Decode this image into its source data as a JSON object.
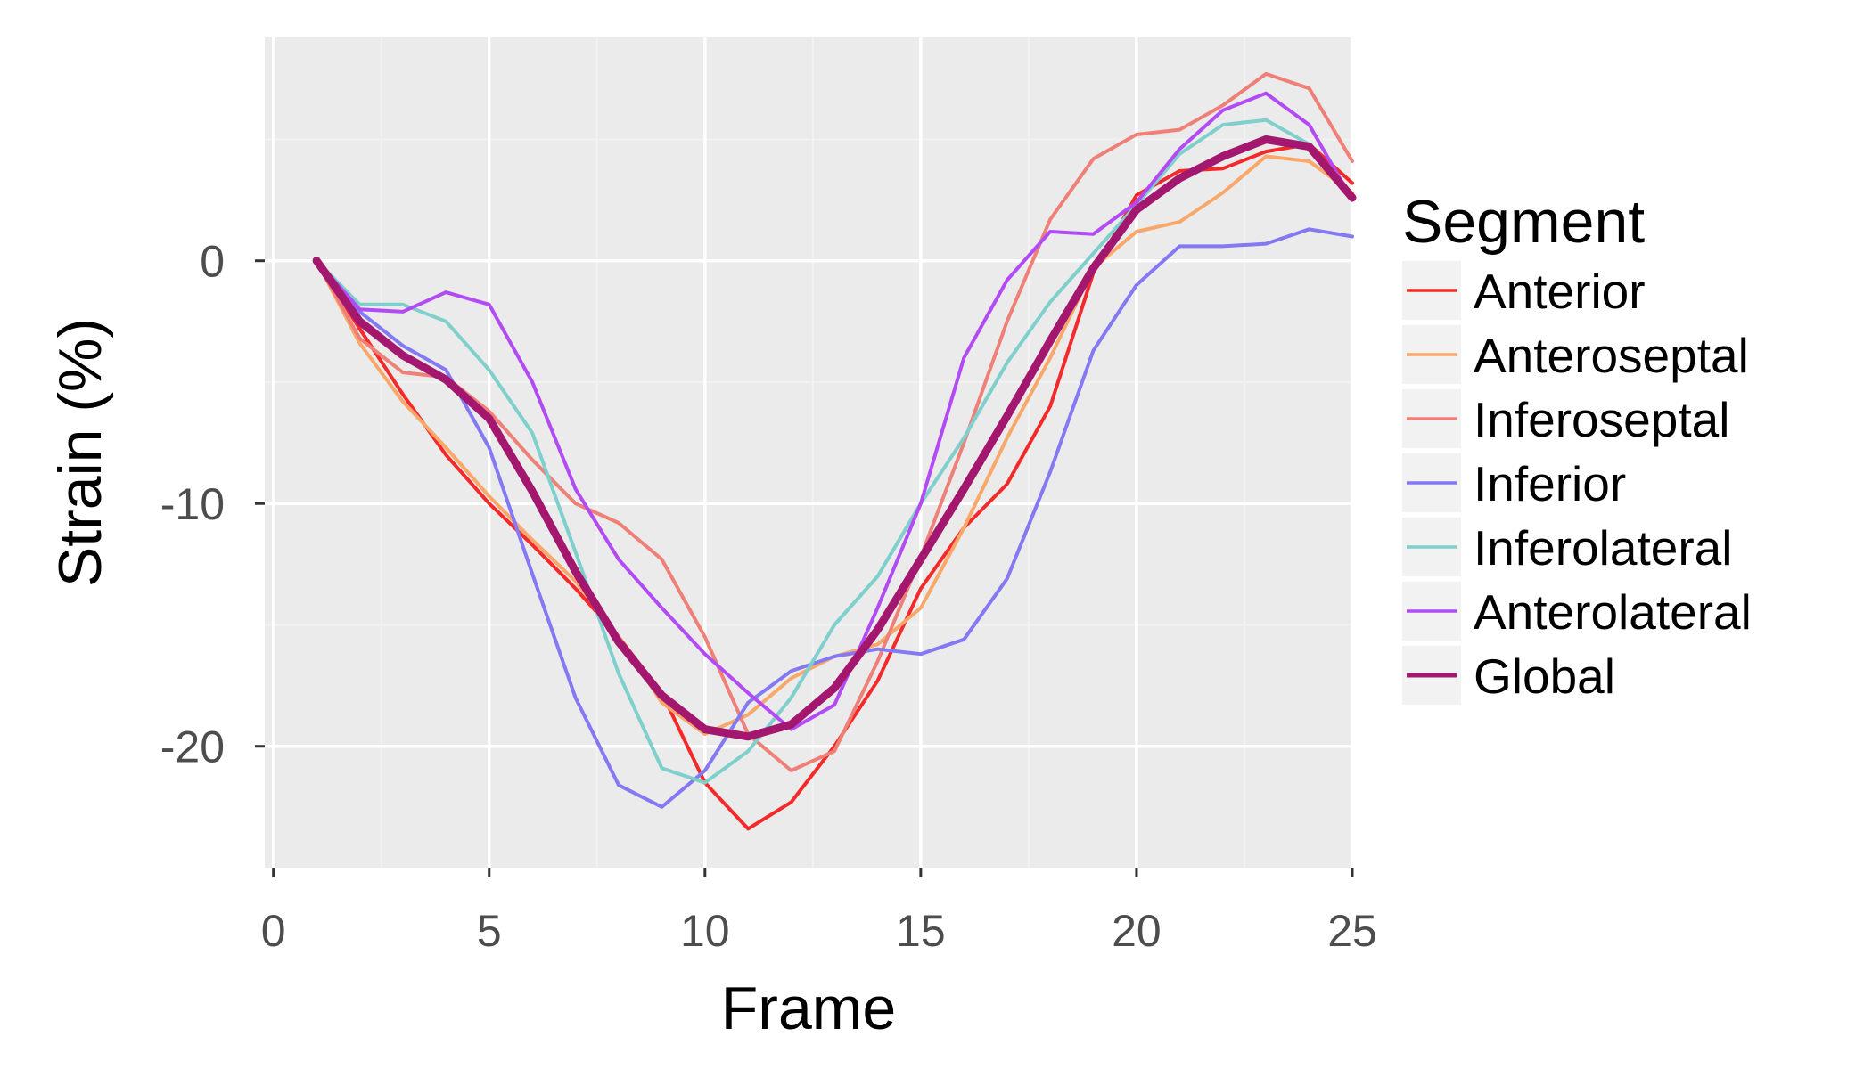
{
  "chart_data": {
    "type": "line",
    "xlabel": "Frame",
    "ylabel": "Strain (%)",
    "xlim": [
      -0.2,
      25.0
    ],
    "ylim": [
      -25.0,
      9.2
    ],
    "x_ticks": [
      0,
      5,
      10,
      15,
      20,
      25
    ],
    "x_tick_labels": [
      "0",
      "5",
      "10",
      "15",
      "20",
      "25"
    ],
    "y_ticks": [
      0,
      -10,
      -20
    ],
    "y_tick_labels": [
      "0",
      "-10",
      "-20"
    ],
    "grid": true,
    "legend_position": "right",
    "legend_title": "Segment",
    "x": [
      1,
      2,
      3,
      4,
      5,
      6,
      7,
      8,
      9,
      10,
      11,
      12,
      13,
      14,
      15,
      16,
      17,
      18,
      19,
      20,
      21,
      22,
      23,
      24,
      25
    ],
    "series": [
      {
        "name": "Anterior",
        "color": "#f42a2a",
        "width": 4,
        "values": [
          0,
          -2.8,
          -5.5,
          -8.0,
          -10.0,
          -11.7,
          -13.5,
          -15.5,
          -17.8,
          -21.5,
          -23.4,
          -22.3,
          -20.0,
          -17.3,
          -13.5,
          -11.0,
          -9.2,
          -6.0,
          -0.5,
          2.7,
          3.7,
          3.8,
          4.5,
          4.8,
          3.2
        ]
      },
      {
        "name": "Anteroseptal",
        "color": "#f9a86a",
        "width": 4,
        "values": [
          0,
          -3.4,
          -5.8,
          -7.7,
          -9.7,
          -11.5,
          -13.2,
          -15.5,
          -18.2,
          -19.5,
          -18.7,
          -17.2,
          -16.3,
          -15.8,
          -14.3,
          -11.0,
          -7.3,
          -4.0,
          -0.3,
          1.2,
          1.6,
          2.8,
          4.3,
          4.1,
          2.8
        ]
      },
      {
        "name": "Inferoseptal",
        "color": "#ef8078",
        "width": 4,
        "values": [
          0,
          -3.2,
          -4.6,
          -4.8,
          -6.2,
          -8.2,
          -10.0,
          -10.8,
          -12.3,
          -15.5,
          -19.5,
          -21.0,
          -20.2,
          -16.5,
          -12.2,
          -7.5,
          -2.5,
          1.7,
          4.2,
          5.2,
          5.4,
          6.4,
          7.7,
          7.1,
          4.1
        ]
      },
      {
        "name": "Inferior",
        "color": "#8479f3",
        "width": 4,
        "values": [
          0,
          -2.1,
          -3.5,
          -4.5,
          -7.7,
          -12.9,
          -18.0,
          -21.6,
          -22.5,
          -21.0,
          -18.2,
          -16.9,
          -16.3,
          -16.0,
          -16.2,
          -15.6,
          -13.1,
          -8.7,
          -3.7,
          -1.0,
          0.6,
          0.6,
          0.7,
          1.3,
          1.0
        ]
      },
      {
        "name": "Inferolateral",
        "color": "#7fd0cd",
        "width": 4,
        "values": [
          0,
          -1.8,
          -1.8,
          -2.5,
          -4.5,
          -7.1,
          -12.0,
          -17.0,
          -20.9,
          -21.5,
          -20.2,
          -18.0,
          -15.0,
          -13.0,
          -10.0,
          -7.3,
          -4.2,
          -1.7,
          0.3,
          2.3,
          4.4,
          5.6,
          5.8,
          4.8,
          2.6
        ]
      },
      {
        "name": "Anterolateral",
        "color": "#b34bf4",
        "width": 4,
        "values": [
          0,
          -2.0,
          -2.1,
          -1.3,
          -1.8,
          -5.0,
          -9.4,
          -12.3,
          -14.3,
          -16.2,
          -17.8,
          -19.3,
          -18.3,
          -14.3,
          -10.0,
          -4.0,
          -0.8,
          1.2,
          1.1,
          2.4,
          4.6,
          6.2,
          6.9,
          5.6,
          2.5
        ]
      },
      {
        "name": "Global",
        "color": "#a3186e",
        "width": 9,
        "values": [
          0,
          -2.5,
          -3.9,
          -4.9,
          -6.5,
          -9.5,
          -12.8,
          -15.7,
          -17.9,
          -19.3,
          -19.6,
          -19.1,
          -17.6,
          -15.2,
          -12.3,
          -9.4,
          -6.4,
          -3.3,
          -0.3,
          2.1,
          3.4,
          4.3,
          5.0,
          4.7,
          2.6
        ]
      }
    ]
  }
}
